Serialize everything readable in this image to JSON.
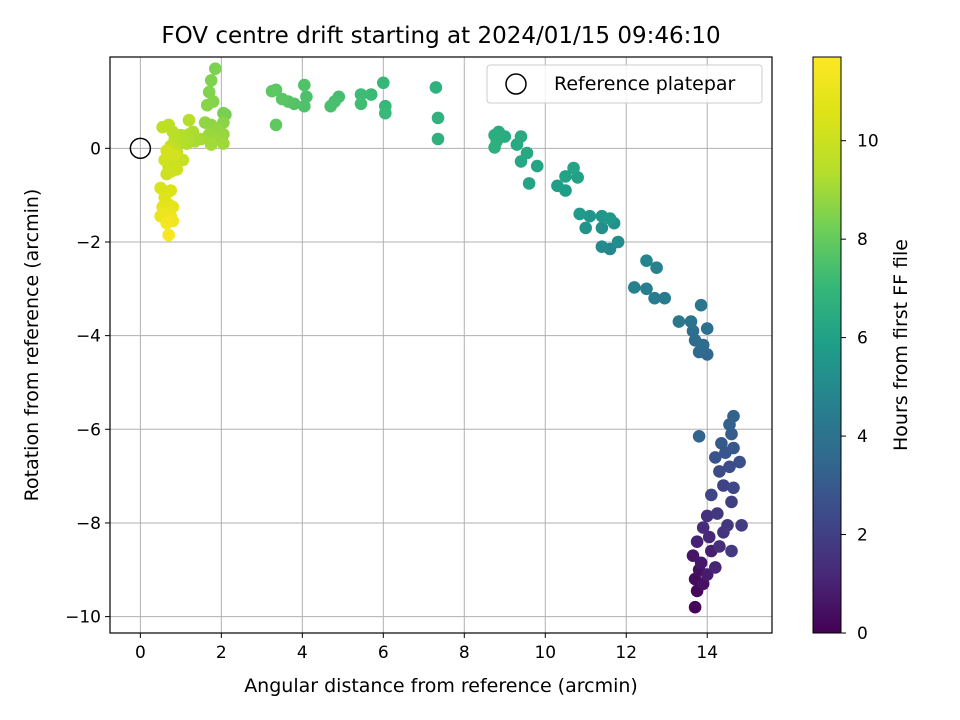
{
  "chart_data": {
    "type": "scatter",
    "title": "FOV centre drift starting at 2024/01/15 09:46:10",
    "xlabel": "Angular distance from reference (arcmin)",
    "ylabel": "Rotation from reference (arcmin)",
    "xlim": [
      -0.75,
      15.6
    ],
    "ylim": [
      -10.35,
      1.95
    ],
    "xticks": [
      0,
      2,
      4,
      6,
      8,
      10,
      12,
      14
    ],
    "yticks": [
      0,
      -2,
      -4,
      -6,
      -8,
      -10
    ],
    "grid": true,
    "colorbar": {
      "label": "Hours from first FF file",
      "colormap": "viridis",
      "range": [
        0,
        11.7
      ],
      "ticks": [
        0,
        2,
        4,
        6,
        8,
        10
      ]
    },
    "legend": {
      "position": "top-right",
      "entries": [
        "Reference platepar"
      ]
    },
    "reference_point": {
      "x": 0,
      "y": 0
    },
    "points": [
      {
        "x": 13.7,
        "y": -9.8,
        "c": 0.1
      },
      {
        "x": 13.75,
        "y": -9.45,
        "c": 0.2
      },
      {
        "x": 13.7,
        "y": -9.2,
        "c": 0.3
      },
      {
        "x": 13.8,
        "y": -9.0,
        "c": 0.4
      },
      {
        "x": 13.9,
        "y": -9.3,
        "c": 0.5
      },
      {
        "x": 13.65,
        "y": -8.7,
        "c": 0.6
      },
      {
        "x": 13.85,
        "y": -8.85,
        "c": 0.7
      },
      {
        "x": 14.0,
        "y": -9.1,
        "c": 0.8
      },
      {
        "x": 14.1,
        "y": -8.6,
        "c": 0.9
      },
      {
        "x": 13.75,
        "y": -8.4,
        "c": 1.0
      },
      {
        "x": 14.2,
        "y": -8.95,
        "c": 1.1
      },
      {
        "x": 14.05,
        "y": -8.3,
        "c": 1.2
      },
      {
        "x": 13.9,
        "y": -8.1,
        "c": 1.3
      },
      {
        "x": 14.3,
        "y": -8.5,
        "c": 1.4
      },
      {
        "x": 14.0,
        "y": -7.85,
        "c": 1.5
      },
      {
        "x": 14.4,
        "y": -8.2,
        "c": 1.6
      },
      {
        "x": 14.25,
        "y": -7.8,
        "c": 1.7
      },
      {
        "x": 14.5,
        "y": -8.05,
        "c": 1.75
      },
      {
        "x": 14.6,
        "y": -8.6,
        "c": 1.8
      },
      {
        "x": 14.85,
        "y": -8.05,
        "c": 1.9
      },
      {
        "x": 14.6,
        "y": -7.55,
        "c": 2.0
      },
      {
        "x": 14.4,
        "y": -7.2,
        "c": 2.1
      },
      {
        "x": 14.1,
        "y": -7.4,
        "c": 2.2
      },
      {
        "x": 14.65,
        "y": -7.25,
        "c": 2.3
      },
      {
        "x": 14.3,
        "y": -6.9,
        "c": 2.4
      },
      {
        "x": 14.55,
        "y": -6.8,
        "c": 2.5
      },
      {
        "x": 14.8,
        "y": -6.7,
        "c": 2.6
      },
      {
        "x": 14.2,
        "y": -6.6,
        "c": 2.7
      },
      {
        "x": 14.45,
        "y": -6.5,
        "c": 2.8
      },
      {
        "x": 14.65,
        "y": -6.4,
        "c": 2.9
      },
      {
        "x": 14.35,
        "y": -6.3,
        "c": 3.0
      },
      {
        "x": 14.6,
        "y": -6.1,
        "c": 3.1
      },
      {
        "x": 14.55,
        "y": -5.9,
        "c": 3.2
      },
      {
        "x": 14.65,
        "y": -5.72,
        "c": 3.3
      },
      {
        "x": 13.8,
        "y": -6.15,
        "c": 3.4
      },
      {
        "x": 14.0,
        "y": -4.4,
        "c": 3.5
      },
      {
        "x": 13.8,
        "y": -4.35,
        "c": 3.6
      },
      {
        "x": 13.7,
        "y": -4.1,
        "c": 3.7
      },
      {
        "x": 13.9,
        "y": -4.2,
        "c": 3.75
      },
      {
        "x": 13.65,
        "y": -3.9,
        "c": 3.8
      },
      {
        "x": 14.0,
        "y": -3.85,
        "c": 3.9
      },
      {
        "x": 13.6,
        "y": -3.7,
        "c": 4.0
      },
      {
        "x": 13.85,
        "y": -3.35,
        "c": 4.1
      },
      {
        "x": 13.3,
        "y": -3.7,
        "c": 4.2
      },
      {
        "x": 12.95,
        "y": -3.2,
        "c": 4.3
      },
      {
        "x": 12.7,
        "y": -3.2,
        "c": 4.4
      },
      {
        "x": 12.5,
        "y": -3.0,
        "c": 4.5
      },
      {
        "x": 12.2,
        "y": -2.97,
        "c": 4.6
      },
      {
        "x": 12.75,
        "y": -2.55,
        "c": 4.7
      },
      {
        "x": 12.5,
        "y": -2.4,
        "c": 4.8
      },
      {
        "x": 11.6,
        "y": -2.15,
        "c": 4.9
      },
      {
        "x": 11.4,
        "y": -2.1,
        "c": 5.0
      },
      {
        "x": 11.8,
        "y": -2.0,
        "c": 5.1
      },
      {
        "x": 11.4,
        "y": -1.7,
        "c": 5.2
      },
      {
        "x": 11.7,
        "y": -1.6,
        "c": 5.3
      },
      {
        "x": 11.0,
        "y": -1.7,
        "c": 5.4
      },
      {
        "x": 11.1,
        "y": -1.45,
        "c": 5.5
      },
      {
        "x": 11.4,
        "y": -1.45,
        "c": 5.55
      },
      {
        "x": 11.6,
        "y": -1.5,
        "c": 5.6
      },
      {
        "x": 10.85,
        "y": -1.4,
        "c": 5.7
      },
      {
        "x": 10.5,
        "y": -0.9,
        "c": 5.8
      },
      {
        "x": 10.3,
        "y": -0.8,
        "c": 5.9
      },
      {
        "x": 10.8,
        "y": -0.62,
        "c": 6.0
      },
      {
        "x": 10.5,
        "y": -0.6,
        "c": 6.05
      },
      {
        "x": 10.7,
        "y": -0.42,
        "c": 6.1
      },
      {
        "x": 9.6,
        "y": -0.75,
        "c": 6.15
      },
      {
        "x": 9.8,
        "y": -0.38,
        "c": 6.2
      },
      {
        "x": 9.4,
        "y": -0.28,
        "c": 6.25
      },
      {
        "x": 9.55,
        "y": -0.1,
        "c": 6.3
      },
      {
        "x": 9.3,
        "y": 0.08,
        "c": 6.35
      },
      {
        "x": 9.4,
        "y": 0.25,
        "c": 6.4
      },
      {
        "x": 9.0,
        "y": 0.25,
        "c": 6.45
      },
      {
        "x": 8.85,
        "y": 0.35,
        "c": 6.5
      },
      {
        "x": 8.75,
        "y": 0.28,
        "c": 6.55
      },
      {
        "x": 8.8,
        "y": 0.15,
        "c": 6.6
      },
      {
        "x": 8.75,
        "y": 0.02,
        "c": 6.65
      },
      {
        "x": 7.35,
        "y": 0.2,
        "c": 6.7
      },
      {
        "x": 7.35,
        "y": 0.65,
        "c": 6.75
      },
      {
        "x": 7.3,
        "y": 1.3,
        "c": 6.8
      },
      {
        "x": 6.0,
        "y": 1.4,
        "c": 7.0
      },
      {
        "x": 6.05,
        "y": 0.9,
        "c": 7.05
      },
      {
        "x": 6.05,
        "y": 0.75,
        "c": 7.1
      },
      {
        "x": 5.7,
        "y": 1.15,
        "c": 7.15
      },
      {
        "x": 5.45,
        "y": 1.15,
        "c": 7.2
      },
      {
        "x": 5.45,
        "y": 0.95,
        "c": 7.25
      },
      {
        "x": 4.9,
        "y": 1.1,
        "c": 7.35
      },
      {
        "x": 4.8,
        "y": 1.0,
        "c": 7.4
      },
      {
        "x": 4.7,
        "y": 0.9,
        "c": 7.45
      },
      {
        "x": 4.1,
        "y": 1.1,
        "c": 7.5
      },
      {
        "x": 4.05,
        "y": 0.9,
        "c": 7.55
      },
      {
        "x": 4.05,
        "y": 1.35,
        "c": 7.6
      },
      {
        "x": 3.8,
        "y": 0.95,
        "c": 7.65
      },
      {
        "x": 3.65,
        "y": 1.0,
        "c": 7.7
      },
      {
        "x": 3.5,
        "y": 1.05,
        "c": 7.75
      },
      {
        "x": 3.35,
        "y": 1.25,
        "c": 7.8
      },
      {
        "x": 3.25,
        "y": 1.22,
        "c": 7.85
      },
      {
        "x": 3.35,
        "y": 0.5,
        "c": 7.9
      },
      {
        "x": 2.05,
        "y": 0.75,
        "c": 8.3
      },
      {
        "x": 2.1,
        "y": 0.72,
        "c": 8.35
      },
      {
        "x": 1.85,
        "y": 1.7,
        "c": 8.4
      },
      {
        "x": 1.75,
        "y": 1.45,
        "c": 8.45
      },
      {
        "x": 1.7,
        "y": 1.2,
        "c": 8.5
      },
      {
        "x": 1.8,
        "y": 1.0,
        "c": 8.55
      },
      {
        "x": 1.65,
        "y": 0.92,
        "c": 8.6
      },
      {
        "x": 2.05,
        "y": 0.55,
        "c": 8.65
      },
      {
        "x": 1.75,
        "y": 0.5,
        "c": 8.7
      },
      {
        "x": 1.6,
        "y": 0.55,
        "c": 8.75
      },
      {
        "x": 1.9,
        "y": 0.4,
        "c": 8.8
      },
      {
        "x": 2.05,
        "y": 0.3,
        "c": 8.85
      },
      {
        "x": 1.7,
        "y": 0.3,
        "c": 8.9
      },
      {
        "x": 1.85,
        "y": 0.2,
        "c": 8.95
      },
      {
        "x": 2.05,
        "y": 0.1,
        "c": 9.0
      },
      {
        "x": 1.75,
        "y": 0.08,
        "c": 9.05
      },
      {
        "x": 1.5,
        "y": 0.2,
        "c": 9.1
      },
      {
        "x": 1.35,
        "y": 0.15,
        "c": 9.15
      },
      {
        "x": 1.3,
        "y": 0.35,
        "c": 9.2
      },
      {
        "x": 1.2,
        "y": 0.3,
        "c": 9.25
      },
      {
        "x": 1.15,
        "y": 0.1,
        "c": 9.3
      },
      {
        "x": 1.0,
        "y": 0.28,
        "c": 9.35
      },
      {
        "x": 1.2,
        "y": 0.6,
        "c": 9.4
      },
      {
        "x": 0.95,
        "y": 0.1,
        "c": 9.45
      },
      {
        "x": 0.85,
        "y": 0.2,
        "c": 9.5
      },
      {
        "x": 0.8,
        "y": 0.35,
        "c": 9.55
      },
      {
        "x": 0.7,
        "y": 0.5,
        "c": 9.6
      },
      {
        "x": 0.55,
        "y": 0.45,
        "c": 9.65
      },
      {
        "x": 0.75,
        "y": 0.05,
        "c": 9.7
      },
      {
        "x": 0.9,
        "y": -0.08,
        "c": 9.75
      },
      {
        "x": 0.75,
        "y": -0.15,
        "c": 9.8
      },
      {
        "x": 1.05,
        "y": -0.25,
        "c": 9.85
      },
      {
        "x": 0.8,
        "y": -0.3,
        "c": 9.9
      },
      {
        "x": 0.7,
        "y": -0.4,
        "c": 9.95
      },
      {
        "x": 0.65,
        "y": -0.55,
        "c": 10.0
      },
      {
        "x": 0.75,
        "y": -0.5,
        "c": 10.05
      },
      {
        "x": 0.9,
        "y": -0.45,
        "c": 10.1
      },
      {
        "x": 0.6,
        "y": -0.25,
        "c": 10.15
      },
      {
        "x": 0.85,
        "y": -0.15,
        "c": 10.2
      },
      {
        "x": 0.65,
        "y": -0.05,
        "c": 10.25
      },
      {
        "x": 0.5,
        "y": -0.85,
        "c": 10.4
      },
      {
        "x": 0.75,
        "y": -0.9,
        "c": 10.5
      },
      {
        "x": 0.6,
        "y": -1.05,
        "c": 10.6
      },
      {
        "x": 0.7,
        "y": -1.2,
        "c": 10.7
      },
      {
        "x": 0.55,
        "y": -1.25,
        "c": 10.8
      },
      {
        "x": 0.8,
        "y": -1.25,
        "c": 10.9
      },
      {
        "x": 0.5,
        "y": -1.45,
        "c": 11.0
      },
      {
        "x": 0.6,
        "y": -1.4,
        "c": 11.1
      },
      {
        "x": 0.75,
        "y": -1.45,
        "c": 11.2
      },
      {
        "x": 0.8,
        "y": -1.55,
        "c": 11.3
      },
      {
        "x": 0.65,
        "y": -1.6,
        "c": 11.4
      },
      {
        "x": 0.7,
        "y": -1.85,
        "c": 11.5
      }
    ]
  }
}
